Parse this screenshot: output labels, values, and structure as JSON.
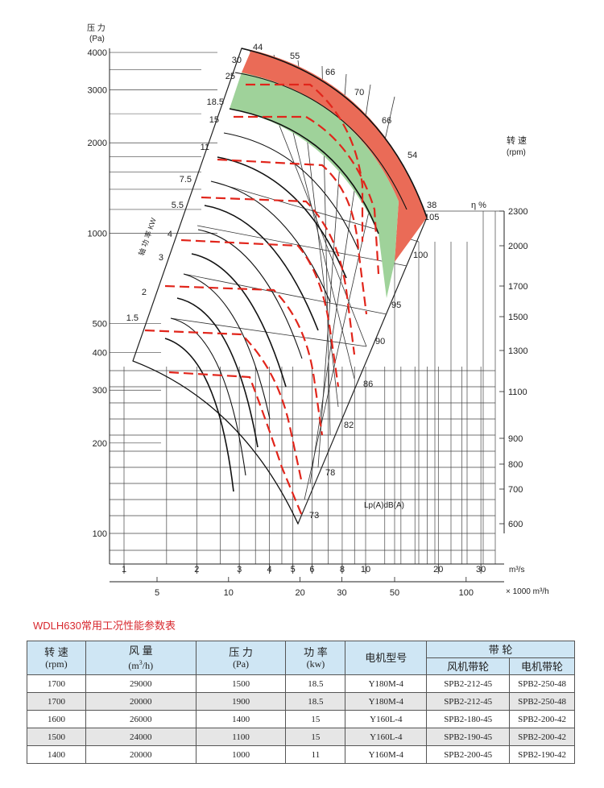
{
  "chart_data": {
    "type": "fan-performance-chart",
    "y_axis": {
      "title": "压 力",
      "unit": "(Pa)",
      "scale": "log",
      "ticks": [
        "100",
        "200",
        "300",
        "400",
        "500",
        "1000",
        "2000",
        "3000",
        "4000"
      ]
    },
    "x_axis_m3s": {
      "unit": "m³/s",
      "scale": "log",
      "ticks": [
        "1",
        "2",
        "3",
        "4",
        "5",
        "6",
        "8",
        "10",
        "20",
        "30"
      ]
    },
    "x_axis_m3h": {
      "unit": "× 1000 m³/h",
      "scale": "log",
      "ticks": [
        "5",
        "10",
        "20",
        "30",
        "50",
        "100"
      ]
    },
    "speed_axis": {
      "title": "转 速",
      "unit": "(rpm)",
      "ticks": [
        "2300",
        "2000",
        "1700",
        "1500",
        "1300",
        "1100",
        "900",
        "800",
        "700",
        "600"
      ]
    },
    "power_axis": {
      "title": "轴 功 率 KW",
      "ticks": [
        "1.5",
        "2",
        "3",
        "4",
        "5.5",
        "7.5",
        "11",
        "15",
        "18.5",
        "25",
        "30"
      ]
    },
    "efficiency": {
      "label": "η %",
      "values": [
        "44",
        "55",
        "66",
        "70",
        "66",
        "54",
        "38"
      ]
    },
    "noise": {
      "label": "Lp(A)dB(A)",
      "values": [
        "105",
        "100",
        "95",
        "90",
        "86",
        "82",
        "78",
        "73"
      ]
    },
    "zones": [
      {
        "name": "high-efficiency",
        "color": "#9fd29a"
      },
      {
        "name": "overload",
        "color": "#ea6b57"
      }
    ],
    "curve_color": "#111111",
    "dashed_color": "#e1251b"
  },
  "table": {
    "title": "WDLH630常用工况性能参数表",
    "headers": {
      "speed": "转 速",
      "speed_unit": "(rpm)",
      "flow": "风 量",
      "flow_unit_prefix": "(m",
      "flow_unit_sup": "3",
      "flow_unit_suffix": "/h)",
      "pressure": "压 力",
      "pressure_unit": "(Pa)",
      "power": "功 率",
      "power_unit": "(kw)",
      "motor": "电机型号",
      "pulley": "带 轮",
      "fan_pulley": "风机带轮",
      "motor_pulley": "电机带轮"
    },
    "rows": [
      {
        "speed": "1700",
        "flow": "29000",
        "pressure": "1500",
        "power": "18.5",
        "motor": "Y180M-4",
        "fan_pulley": "SPB2-212-45",
        "motor_pulley": "SPB2-250-48"
      },
      {
        "speed": "1700",
        "flow": "20000",
        "pressure": "1900",
        "power": "18.5",
        "motor": "Y180M-4",
        "fan_pulley": "SPB2-212-45",
        "motor_pulley": "SPB2-250-48"
      },
      {
        "speed": "1600",
        "flow": "26000",
        "pressure": "1400",
        "power": "15",
        "motor": "Y160L-4",
        "fan_pulley": "SPB2-180-45",
        "motor_pulley": "SPB2-200-42"
      },
      {
        "speed": "1500",
        "flow": "24000",
        "pressure": "1100",
        "power": "15",
        "motor": "Y160L-4",
        "fan_pulley": "SPB2-190-45",
        "motor_pulley": "SPB2-200-42"
      },
      {
        "speed": "1400",
        "flow": "20000",
        "pressure": "1000",
        "power": "11",
        "motor": "Y160M-4",
        "fan_pulley": "SPB2-200-45",
        "motor_pulley": "SPB2-190-42"
      }
    ]
  }
}
